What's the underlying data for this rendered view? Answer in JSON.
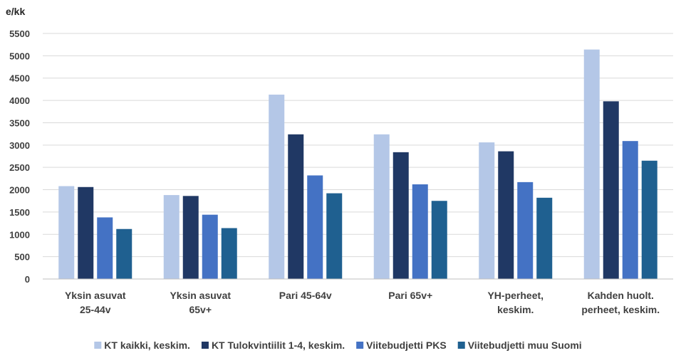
{
  "chart_data": {
    "type": "bar",
    "ylabel": "e/kk",
    "ylim": [
      0,
      5500
    ],
    "ytick_step": 500,
    "grid": true,
    "legend_position": "bottom",
    "categories": [
      [
        "Yksin asuvat",
        "25-44v"
      ],
      [
        "Yksin asuvat",
        "65v+"
      ],
      [
        "Pari 45-64v"
      ],
      [
        "Pari 65v+"
      ],
      [
        "YH-perheet,",
        "keskim."
      ],
      [
        "Kahden huolt.",
        "perheet, keskim."
      ]
    ],
    "series": [
      {
        "name": "KT kaikki, keskim.",
        "color": "#b4c7e7",
        "values": [
          2080,
          1880,
          4130,
          3240,
          3060,
          5140
        ]
      },
      {
        "name": "KT Tulokvintiilit 1-4, keskim.",
        "color": "#203864",
        "values": [
          2060,
          1860,
          3240,
          2840,
          2860,
          3980
        ]
      },
      {
        "name": "Viitebudjetti PKS",
        "color": "#4472c4",
        "values": [
          1380,
          1440,
          2320,
          2120,
          2170,
          3090
        ]
      },
      {
        "name": "Viitebudjetti muu Suomi",
        "color": "#1f6090",
        "values": [
          1120,
          1140,
          1920,
          1750,
          1820,
          2650
        ]
      }
    ]
  }
}
